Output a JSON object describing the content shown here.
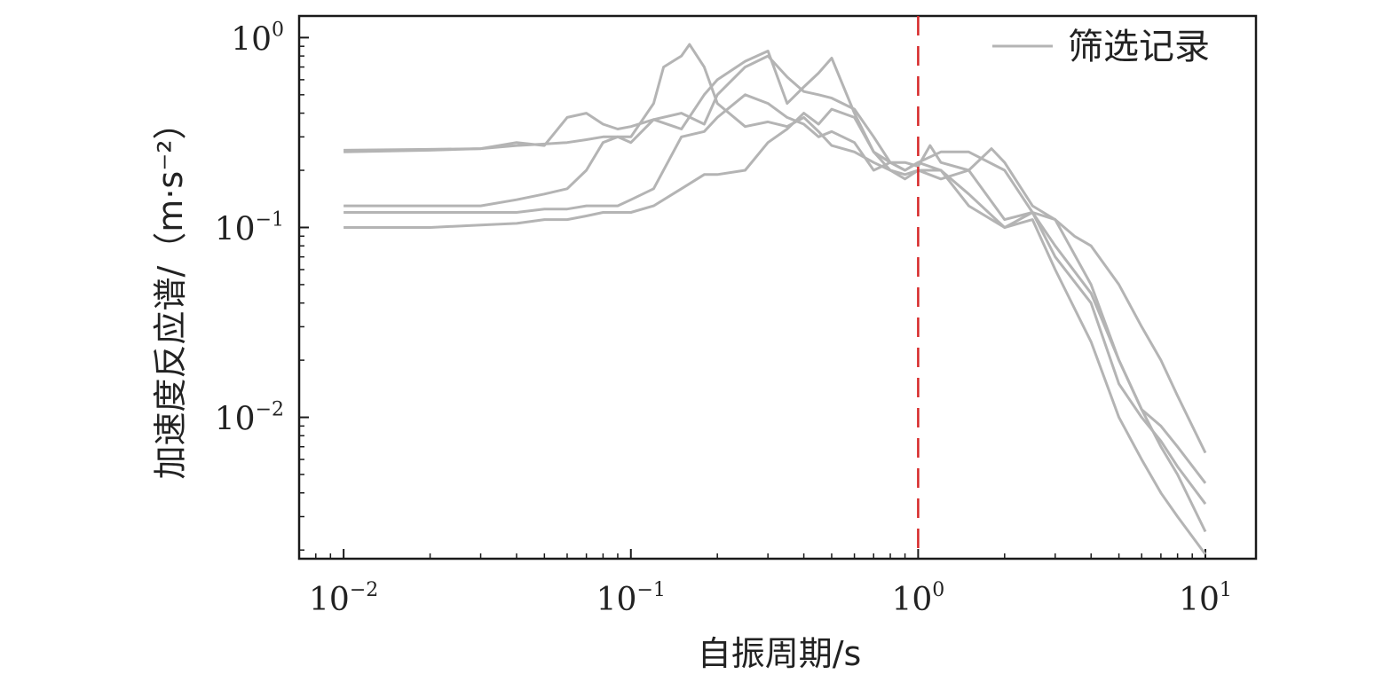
{
  "chart_data": {
    "type": "line",
    "xscale": "log",
    "yscale": "log",
    "xlabel": "自振周期/s",
    "ylabel": "加速度反应谱/（m·s⁻²）",
    "xlim": [
      0.007,
      15
    ],
    "ylim": [
      0.0018,
      1.3
    ],
    "x_ticks": [
      {
        "value": 0.01,
        "base": "10",
        "exp": "−2"
      },
      {
        "value": 0.1,
        "base": "10",
        "exp": "−1"
      },
      {
        "value": 1,
        "base": "10",
        "exp": "0"
      },
      {
        "value": 10,
        "base": "10",
        "exp": "1"
      }
    ],
    "y_ticks": [
      {
        "value": 1,
        "base": "10",
        "exp": "0"
      },
      {
        "value": 0.1,
        "base": "10",
        "exp": "−1"
      },
      {
        "value": 0.01,
        "base": "10",
        "exp": "−2"
      }
    ],
    "grid": false,
    "legend": {
      "position": "top-right",
      "entries": [
        "筛选记录"
      ]
    },
    "reference_line": {
      "x": 1.0,
      "color": "#d62728",
      "style": "dashed"
    },
    "series_color": "#b4b4b4",
    "series": [
      {
        "x": [
          0.01,
          0.02,
          0.03,
          0.04,
          0.05,
          0.06,
          0.07,
          0.08,
          0.09,
          0.1,
          0.12,
          0.13,
          0.15,
          0.16,
          0.18,
          0.2,
          0.25,
          0.3,
          0.35,
          0.4,
          0.45,
          0.5,
          0.6,
          0.7,
          0.8,
          0.9,
          1.0,
          1.2,
          1.5,
          2,
          2.5,
          3,
          4,
          5,
          6,
          7,
          8,
          10
        ],
        "y": [
          0.255,
          0.258,
          0.26,
          0.27,
          0.275,
          0.28,
          0.29,
          0.3,
          0.3,
          0.3,
          0.45,
          0.7,
          0.8,
          0.92,
          0.7,
          0.45,
          0.34,
          0.36,
          0.34,
          0.38,
          0.32,
          0.27,
          0.25,
          0.22,
          0.2,
          0.19,
          0.2,
          0.2,
          0.13,
          0.1,
          0.11,
          0.06,
          0.025,
          0.01,
          0.006,
          0.004,
          0.003,
          0.0019
        ]
      },
      {
        "x": [
          0.01,
          0.02,
          0.03,
          0.04,
          0.05,
          0.06,
          0.07,
          0.08,
          0.09,
          0.1,
          0.12,
          0.15,
          0.18,
          0.2,
          0.25,
          0.3,
          0.35,
          0.4,
          0.45,
          0.5,
          0.6,
          0.7,
          0.8,
          0.9,
          1.0,
          1.2,
          1.5,
          2,
          2.5,
          3,
          4,
          5,
          6,
          7,
          8,
          10
        ],
        "y": [
          0.25,
          0.255,
          0.26,
          0.28,
          0.27,
          0.38,
          0.4,
          0.35,
          0.33,
          0.34,
          0.37,
          0.4,
          0.35,
          0.5,
          0.7,
          0.8,
          0.62,
          0.52,
          0.5,
          0.48,
          0.42,
          0.3,
          0.22,
          0.2,
          0.22,
          0.25,
          0.25,
          0.2,
          0.12,
          0.11,
          0.05,
          0.02,
          0.011,
          0.007,
          0.005,
          0.0025
        ]
      },
      {
        "x": [
          0.01,
          0.02,
          0.03,
          0.04,
          0.05,
          0.06,
          0.07,
          0.08,
          0.09,
          0.1,
          0.12,
          0.15,
          0.18,
          0.2,
          0.25,
          0.3,
          0.35,
          0.4,
          0.45,
          0.5,
          0.6,
          0.7,
          0.8,
          0.9,
          1.0,
          1.1,
          1.2,
          1.5,
          1.8,
          2,
          2.5,
          3,
          3.5,
          4,
          5,
          6,
          7,
          8,
          10
        ],
        "y": [
          0.13,
          0.13,
          0.13,
          0.14,
          0.15,
          0.16,
          0.2,
          0.28,
          0.3,
          0.28,
          0.37,
          0.33,
          0.5,
          0.6,
          0.75,
          0.85,
          0.45,
          0.55,
          0.65,
          0.78,
          0.4,
          0.25,
          0.22,
          0.22,
          0.21,
          0.27,
          0.22,
          0.2,
          0.26,
          0.22,
          0.13,
          0.11,
          0.09,
          0.08,
          0.05,
          0.03,
          0.02,
          0.013,
          0.0065
        ]
      },
      {
        "x": [
          0.01,
          0.02,
          0.03,
          0.04,
          0.05,
          0.06,
          0.07,
          0.08,
          0.09,
          0.1,
          0.12,
          0.15,
          0.18,
          0.2,
          0.25,
          0.3,
          0.35,
          0.4,
          0.45,
          0.5,
          0.6,
          0.7,
          0.8,
          0.9,
          1.0,
          1.2,
          1.5,
          2,
          2.5,
          3,
          4,
          5,
          6,
          7,
          8,
          10
        ],
        "y": [
          0.12,
          0.12,
          0.12,
          0.12,
          0.125,
          0.125,
          0.13,
          0.13,
          0.13,
          0.14,
          0.16,
          0.3,
          0.32,
          0.38,
          0.5,
          0.45,
          0.38,
          0.35,
          0.3,
          0.32,
          0.28,
          0.2,
          0.22,
          0.2,
          0.22,
          0.2,
          0.15,
          0.1,
          0.12,
          0.08,
          0.045,
          0.02,
          0.011,
          0.009,
          0.007,
          0.0045
        ]
      },
      {
        "x": [
          0.01,
          0.02,
          0.03,
          0.04,
          0.05,
          0.06,
          0.07,
          0.08,
          0.09,
          0.1,
          0.12,
          0.15,
          0.18,
          0.2,
          0.25,
          0.3,
          0.35,
          0.4,
          0.45,
          0.5,
          0.6,
          0.7,
          0.8,
          0.9,
          1.0,
          1.2,
          1.5,
          2,
          2.5,
          3,
          4,
          5,
          6,
          7,
          8,
          10
        ],
        "y": [
          0.1,
          0.1,
          0.103,
          0.105,
          0.11,
          0.11,
          0.115,
          0.12,
          0.12,
          0.12,
          0.13,
          0.16,
          0.19,
          0.19,
          0.2,
          0.28,
          0.33,
          0.4,
          0.35,
          0.42,
          0.38,
          0.25,
          0.2,
          0.18,
          0.2,
          0.18,
          0.2,
          0.11,
          0.12,
          0.07,
          0.04,
          0.015,
          0.01,
          0.0075,
          0.0055,
          0.0035
        ]
      }
    ]
  }
}
